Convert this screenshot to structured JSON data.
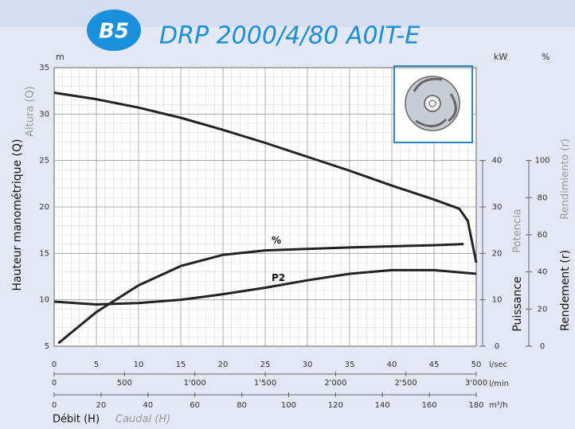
{
  "chart_data": {
    "type": "line",
    "badge": "B5",
    "title": "DRP 2000/4/80 A0IT-E",
    "y_unit": "m",
    "y2_unit": "kW",
    "y3_unit": "%",
    "y_label": "Hauteur manométrique (Q)",
    "y_label_alt": "Altura (Q)",
    "y2_label": "Puissance",
    "y2_label_alt": "Potencia",
    "y3_label": "Rendement (r)",
    "y3_label_alt": "Rendimiento (r)",
    "x_label": "Débit (H)",
    "x_label_alt": "Caudal (H)",
    "x_unit": "l/sec",
    "x2_unit": "l/min",
    "x3_unit": "m³/h",
    "xlim": [
      0,
      50
    ],
    "xticks": [
      0,
      5,
      10,
      15,
      20,
      25,
      30,
      35,
      40,
      45,
      50
    ],
    "x2lim": [
      0,
      3000
    ],
    "x2ticks": [
      0,
      500,
      {
        "value": 1000,
        "label": "1'000"
      },
      {
        "value": 1500,
        "label": "1'500"
      },
      {
        "value": 2000,
        "label": "2'000"
      },
      {
        "value": 2500,
        "label": "2'500"
      },
      {
        "value": 3000,
        "label": "3'000"
      }
    ],
    "x3lim": [
      0,
      180
    ],
    "x3ticks": [
      0,
      20,
      40,
      60,
      80,
      100,
      120,
      140,
      160,
      180
    ],
    "ylim": [
      5,
      35
    ],
    "yticks": [
      5,
      10,
      15,
      20,
      25,
      30,
      35
    ],
    "y2lim": [
      0,
      60
    ],
    "y2ticks": [
      0,
      10,
      20,
      30,
      40
    ],
    "y3lim": [
      0,
      150
    ],
    "y3ticks": [
      0,
      20,
      40,
      60,
      80,
      100
    ],
    "grid": true,
    "series": [
      {
        "color": "#222222",
        "x": [
          0,
          5,
          10,
          15,
          20,
          25,
          30,
          35,
          40,
          45,
          48,
          49,
          50
        ],
        "values": [
          32.3,
          31.6,
          30.7,
          29.6,
          28.3,
          26.9,
          25.4,
          23.9,
          22.3,
          20.8,
          19.8,
          18.5,
          14
        ]
      },
      {
        "name": "%",
        "axis": "y3",
        "color": "#222222",
        "x": [
          0.5,
          5,
          10,
          15,
          20,
          25,
          30,
          35,
          40,
          45,
          48.5
        ],
        "values": [
          1.6,
          18.4,
          32.8,
          43.2,
          49.2,
          51.6,
          52.4,
          53.2,
          53.8,
          54.4,
          55
        ]
      },
      {
        "name": "P2",
        "axis": "y2",
        "color": "#222222",
        "x": [
          0,
          5,
          10,
          15,
          20,
          25,
          30,
          35,
          40,
          45,
          50
        ],
        "values": [
          9.6,
          9,
          9.3,
          10,
          11.2,
          12.6,
          14.2,
          15.6,
          16.4,
          16.4,
          15.6
        ]
      }
    ]
  }
}
